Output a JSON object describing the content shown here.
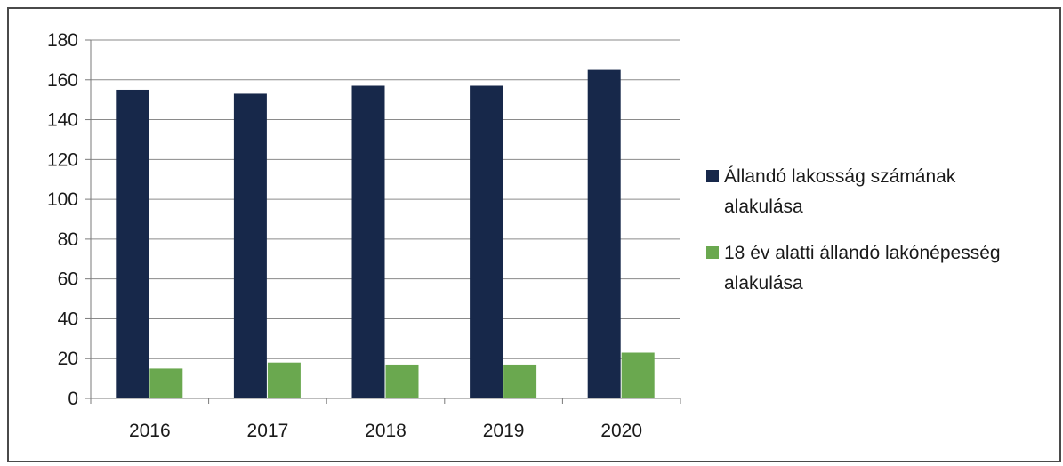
{
  "chart_data": {
    "type": "bar",
    "categories": [
      "2016",
      "2017",
      "2018",
      "2019",
      "2020"
    ],
    "series": [
      {
        "name_lines": [
          "Állandó lakosság számának",
          "alakulása"
        ],
        "values": [
          155,
          153,
          157,
          157,
          165
        ],
        "color": "#17284a"
      },
      {
        "name_lines": [
          "18 év alatti állandó lakónépesség",
          "alakulása"
        ],
        "values": [
          15,
          18,
          17,
          17,
          23
        ],
        "color": "#6aa84f"
      }
    ],
    "yticks": [
      "0",
      "20",
      "40",
      "60",
      "80",
      "100",
      "120",
      "140",
      "160",
      "180"
    ],
    "ylim": [
      0,
      180
    ],
    "grid": true,
    "legend_position": "right"
  }
}
